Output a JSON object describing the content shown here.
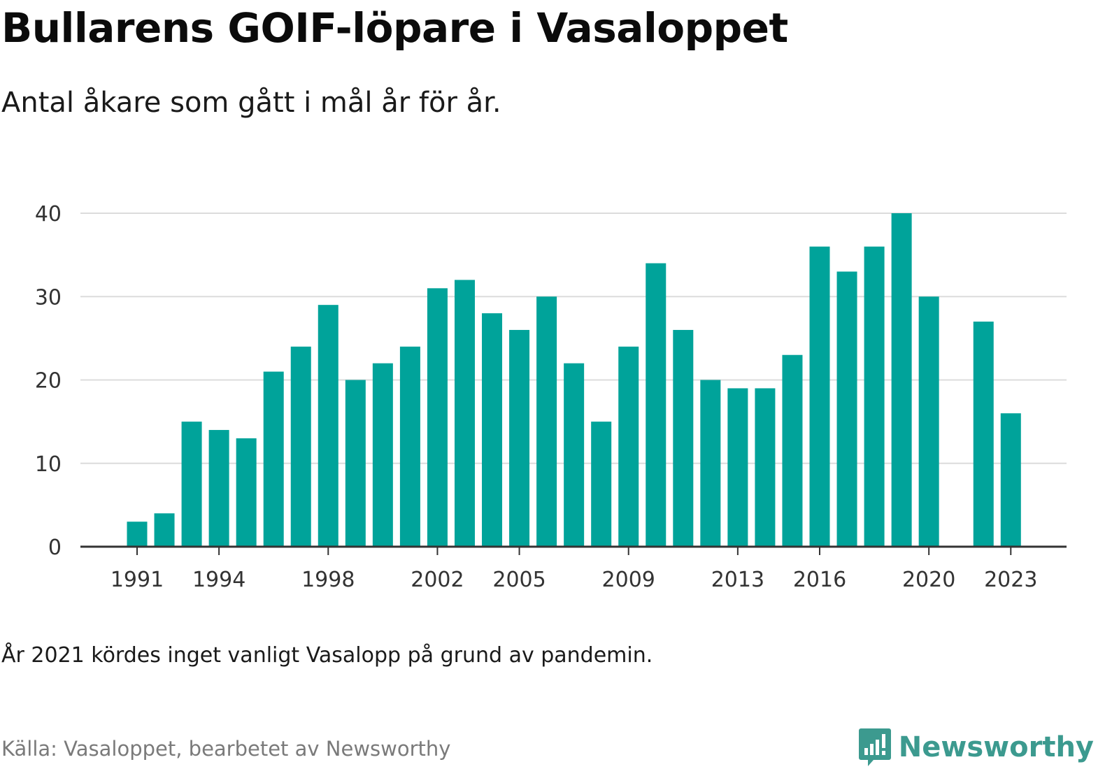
{
  "header": {
    "title": "Bullarens GOIF-löpare i Vasaloppet",
    "subtitle": "Antal åkare som gått i mål år för år."
  },
  "footer": {
    "note": "År 2021 kördes inget vanligt Vasalopp på grund av pandemin.",
    "source": "Källa: Vasaloppet, bearbetet av Newsworthy",
    "brand": "Newsworthy",
    "logo_icon": "newsworthy-logo-icon"
  },
  "colors": {
    "bar": "#00A39A",
    "grid": "#dcdcdc",
    "axis": "#333333",
    "brand": "#3c9a8f"
  },
  "chart_data": {
    "type": "bar",
    "categories": [
      1991,
      1992,
      1993,
      1994,
      1995,
      1996,
      1997,
      1998,
      1999,
      2000,
      2001,
      2002,
      2003,
      2004,
      2005,
      2006,
      2007,
      2008,
      2009,
      2010,
      2011,
      2012,
      2013,
      2014,
      2015,
      2016,
      2017,
      2018,
      2019,
      2020,
      2021,
      2022,
      2023
    ],
    "values": [
      3,
      4,
      15,
      14,
      13,
      21,
      24,
      29,
      20,
      22,
      24,
      31,
      32,
      28,
      26,
      30,
      22,
      15,
      24,
      34,
      26,
      20,
      19,
      19,
      23,
      36,
      33,
      36,
      40,
      30,
      null,
      27,
      16
    ],
    "xticks": [
      1991,
      1994,
      1998,
      2002,
      2005,
      2009,
      2013,
      2016,
      2020,
      2023
    ],
    "yticks": [
      0,
      10,
      20,
      30,
      40
    ],
    "ylim": [
      0,
      40
    ],
    "xlabel": "",
    "ylabel": "",
    "grid": true,
    "legend": "none"
  }
}
